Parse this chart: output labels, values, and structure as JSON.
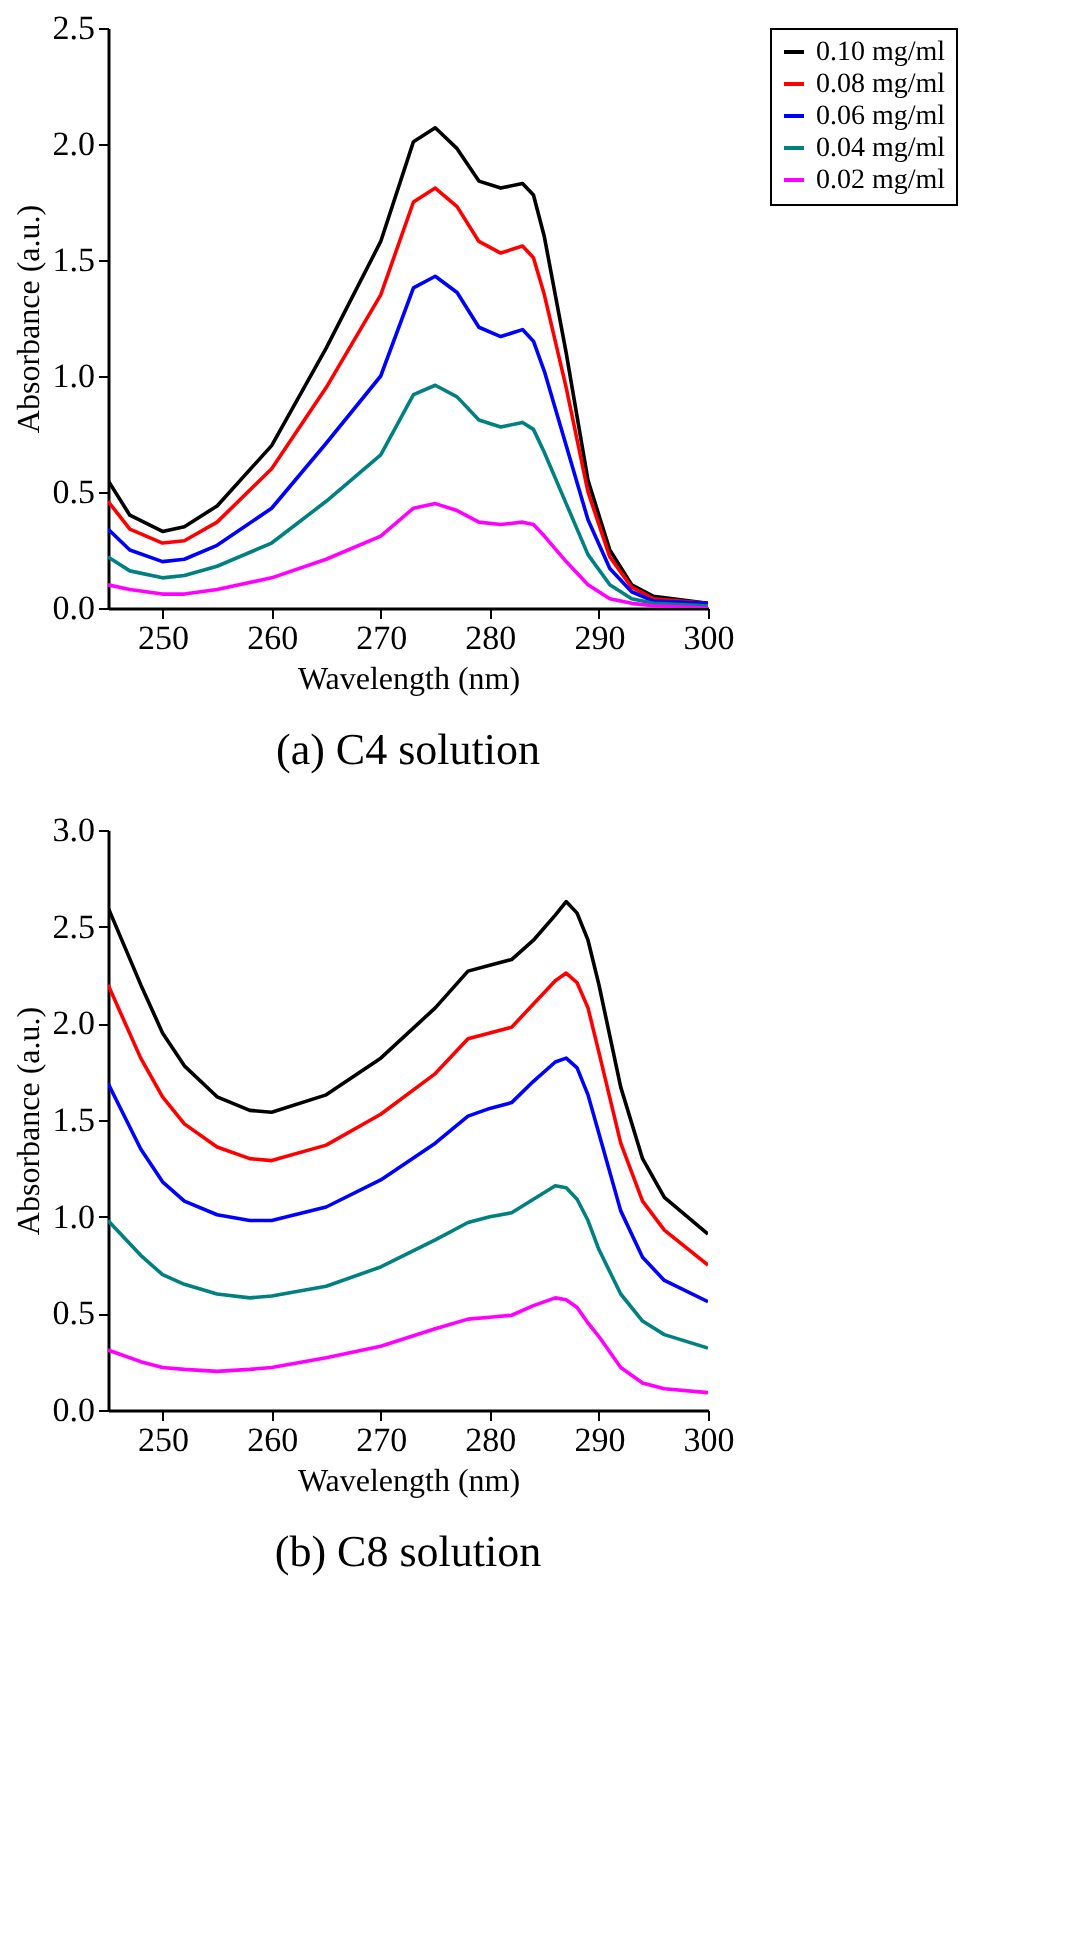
{
  "chart_data": [
    {
      "type": "line",
      "title": "(a) C4 solution",
      "xlabel": "Wavelength (nm)",
      "ylabel": "Absorbance (a.u.)",
      "xlim": [
        245,
        300
      ],
      "xticks": [
        250,
        260,
        270,
        280,
        290,
        300
      ],
      "ylim": [
        0,
        2.5
      ],
      "yticks": [
        {
          "value": 0,
          "label": "0.0"
        },
        0.5,
        {
          "value": 1,
          "label": "1.0"
        },
        1.5,
        {
          "value": 2,
          "label": "2.0"
        },
        2.5
      ],
      "grid": false,
      "legend": "right",
      "marker": "none",
      "line_style": "solid",
      "x": [
        245,
        247,
        250,
        252,
        255,
        260,
        265,
        270,
        273,
        275,
        277,
        279,
        281,
        283,
        284,
        285,
        287,
        289,
        291,
        293,
        295,
        300
      ],
      "series": [
        {
          "name": "0.10 mg/ml",
          "color": "#000000",
          "values": [
            0.55,
            0.4,
            0.33,
            0.35,
            0.44,
            0.7,
            1.12,
            1.58,
            2.01,
            2.07,
            1.98,
            1.84,
            1.81,
            1.83,
            1.78,
            1.6,
            1.1,
            0.55,
            0.25,
            0.1,
            0.05,
            0.02
          ]
        },
        {
          "name": "0.08 mg/ml",
          "color": "#ff0000",
          "values": [
            0.46,
            0.34,
            0.28,
            0.29,
            0.37,
            0.6,
            0.95,
            1.35,
            1.75,
            1.81,
            1.73,
            1.58,
            1.53,
            1.56,
            1.51,
            1.35,
            0.95,
            0.5,
            0.22,
            0.09,
            0.04,
            0.02
          ]
        },
        {
          "name": "0.06 mg/ml",
          "color": "#0000ff",
          "values": [
            0.34,
            0.25,
            0.2,
            0.21,
            0.27,
            0.43,
            0.71,
            1.0,
            1.38,
            1.43,
            1.36,
            1.21,
            1.17,
            1.2,
            1.15,
            1.02,
            0.7,
            0.38,
            0.17,
            0.07,
            0.03,
            0.02
          ]
        },
        {
          "name": "0.04 mg/ml",
          "color": "#008080",
          "values": [
            0.22,
            0.16,
            0.13,
            0.14,
            0.18,
            0.28,
            0.46,
            0.66,
            0.92,
            0.96,
            0.91,
            0.81,
            0.78,
            0.8,
            0.77,
            0.67,
            0.45,
            0.23,
            0.1,
            0.04,
            0.02,
            0.01
          ]
        },
        {
          "name": "0.02 mg/ml",
          "color": "#ff00ff",
          "values": [
            0.1,
            0.08,
            0.06,
            0.06,
            0.08,
            0.13,
            0.21,
            0.31,
            0.43,
            0.45,
            0.42,
            0.37,
            0.36,
            0.37,
            0.36,
            0.31,
            0.2,
            0.1,
            0.04,
            0.02,
            0.01,
            0.0
          ]
        }
      ]
    },
    {
      "type": "line",
      "title": "(b) C8 solution",
      "xlabel": "Wavelength (nm)",
      "ylabel": "Absorbance (a.u.)",
      "xlim": [
        245,
        300
      ],
      "xticks": [
        250,
        260,
        270,
        280,
        290,
        300
      ],
      "ylim": [
        0,
        3.0
      ],
      "yticks": [
        {
          "value": 0,
          "label": "0.0"
        },
        0.5,
        {
          "value": 1,
          "label": "1.0"
        },
        1.5,
        {
          "value": 2,
          "label": "2.0"
        },
        2.5,
        {
          "value": 3,
          "label": "3.0"
        }
      ],
      "grid": false,
      "legend": "right",
      "marker": "none",
      "line_style": "solid",
      "x": [
        245,
        248,
        250,
        252,
        255,
        258,
        260,
        265,
        270,
        275,
        278,
        280,
        282,
        284,
        286,
        287,
        288,
        289,
        290,
        292,
        294,
        296,
        300
      ],
      "series": [
        {
          "name": "0.10 mg/ml",
          "color": "#000000",
          "values": [
            2.6,
            2.2,
            1.95,
            1.78,
            1.62,
            1.55,
            1.54,
            1.63,
            1.82,
            2.08,
            2.27,
            2.3,
            2.33,
            2.43,
            2.56,
            2.63,
            2.57,
            2.43,
            2.2,
            1.67,
            1.3,
            1.1,
            0.91
          ]
        },
        {
          "name": "0.08 mg/ml",
          "color": "#ff0000",
          "values": [
            2.2,
            1.82,
            1.62,
            1.48,
            1.36,
            1.3,
            1.29,
            1.37,
            1.53,
            1.74,
            1.92,
            1.95,
            1.98,
            2.1,
            2.22,
            2.26,
            2.21,
            2.08,
            1.85,
            1.38,
            1.08,
            0.93,
            0.75
          ]
        },
        {
          "name": "0.06 mg/ml",
          "color": "#0000ff",
          "values": [
            1.69,
            1.35,
            1.18,
            1.08,
            1.01,
            0.98,
            0.98,
            1.05,
            1.19,
            1.38,
            1.52,
            1.56,
            1.59,
            1.7,
            1.8,
            1.82,
            1.77,
            1.63,
            1.43,
            1.03,
            0.79,
            0.67,
            0.56
          ]
        },
        {
          "name": "0.04 mg/ml",
          "color": "#008080",
          "values": [
            0.98,
            0.8,
            0.7,
            0.65,
            0.6,
            0.58,
            0.59,
            0.64,
            0.74,
            0.88,
            0.97,
            1.0,
            1.02,
            1.09,
            1.16,
            1.15,
            1.09,
            0.98,
            0.83,
            0.6,
            0.46,
            0.39,
            0.32
          ]
        },
        {
          "name": "0.02 mg/ml",
          "color": "#ff00ff",
          "values": [
            0.31,
            0.25,
            0.22,
            0.21,
            0.2,
            0.21,
            0.22,
            0.27,
            0.33,
            0.42,
            0.47,
            0.48,
            0.49,
            0.54,
            0.58,
            0.57,
            0.53,
            0.45,
            0.38,
            0.22,
            0.14,
            0.11,
            0.09
          ]
        }
      ]
    }
  ]
}
